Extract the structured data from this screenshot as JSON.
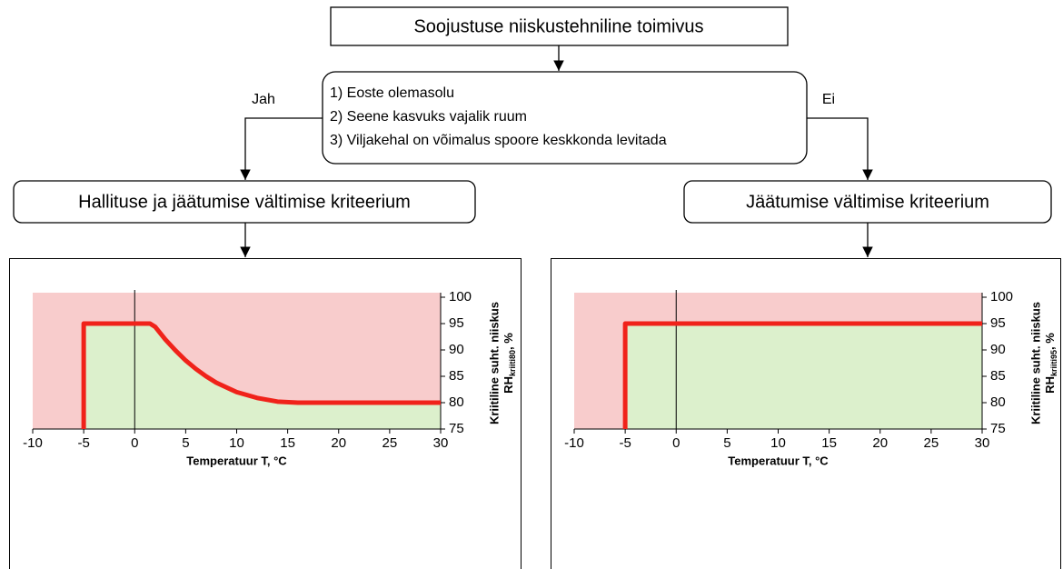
{
  "nodes": {
    "top": "Soojustuse niiskustehniline toimivus",
    "conditions": [
      "1) Eoste olemasolu",
      "2) Seene kasvuks vajalik ruum",
      "3) Viljakehal on võimalus spoore keskkonda levitada"
    ],
    "yes": "Jah",
    "no": "Ei",
    "left": "Hallituse ja jäätumise vältimise kriteerium",
    "right": "Jäätumise vältimise kriteerium"
  },
  "chart_data": [
    {
      "type": "line",
      "x_label": "Temperatuur T, °C",
      "y_label": "Kriitiline suht. niiskus",
      "y_label_rh": {
        "main": "RH",
        "sub": "kriiti80",
        "suffix": ", %"
      },
      "xlim": [
        -10,
        30
      ],
      "ylim": [
        75,
        100
      ],
      "xticks": [
        -10,
        -5,
        0,
        5,
        10,
        15,
        20,
        25,
        30
      ],
      "yticks": [
        75,
        80,
        85,
        90,
        95,
        100
      ],
      "fill_above": "#f8cccc",
      "fill_below": "#dcf0cc",
      "series": [
        {
          "color": "#f0221a",
          "x": [
            -5,
            -5,
            0,
            1.5,
            2,
            3,
            4,
            5,
            6,
            7,
            8,
            10,
            12,
            14,
            16,
            30
          ],
          "values": [
            75,
            95,
            95,
            95,
            94.4,
            92,
            89.9,
            88,
            86.4,
            85,
            83.8,
            82,
            80.9,
            80.2,
            80,
            80
          ]
        }
      ]
    },
    {
      "type": "line",
      "x_label": "Temperatuur T, °C",
      "y_label": "Kriitiline suht. niiskus",
      "y_label_rh": {
        "main": "RH",
        "sub": "kriiti95",
        "suffix": ", %"
      },
      "xlim": [
        -10,
        30
      ],
      "ylim": [
        75,
        100
      ],
      "xticks": [
        -10,
        -5,
        0,
        5,
        10,
        15,
        20,
        25,
        30
      ],
      "yticks": [
        75,
        80,
        85,
        90,
        95,
        100
      ],
      "fill_above": "#f8cccc",
      "fill_below": "#dcf0cc",
      "series": [
        {
          "color": "#f0221a",
          "x": [
            -5,
            -5,
            30
          ],
          "values": [
            75,
            95,
            95
          ]
        }
      ]
    }
  ]
}
